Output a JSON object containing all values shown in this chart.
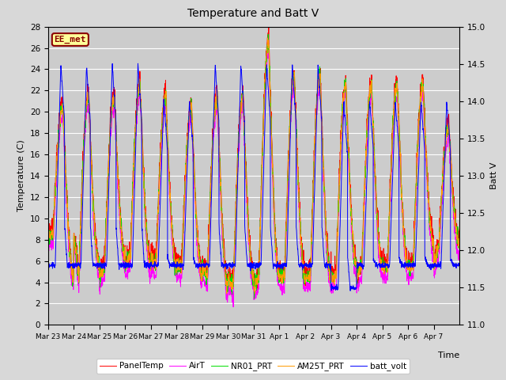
{
  "title": "Temperature and Batt V",
  "xlabel": "Time",
  "ylabel_left": "Temperature (C)",
  "ylabel_right": "Batt V",
  "ylim_left": [
    0,
    28
  ],
  "ylim_right": [
    11.0,
    15.0
  ],
  "yticks_left": [
    0,
    2,
    4,
    6,
    8,
    10,
    12,
    14,
    16,
    18,
    20,
    22,
    24,
    26,
    28
  ],
  "yticks_right": [
    11.0,
    11.5,
    12.0,
    12.5,
    13.0,
    13.5,
    14.0,
    14.5,
    15.0
  ],
  "xtick_labels": [
    "Mar 23",
    "Mar 24",
    "Mar 25",
    "Mar 26",
    "Mar 27",
    "Mar 28",
    "Mar 29",
    "Mar 30",
    "Mar 31",
    "Apr 1",
    "Apr 2",
    "Apr 3",
    "Apr 4",
    "Apr 5",
    "Apr 6",
    "Apr 7"
  ],
  "panel_color": "#ff0000",
  "air_color": "#ff00ff",
  "nr01_color": "#00dd00",
  "am25_color": "#ff9900",
  "batt_color": "#0000ff",
  "fig_bg_color": "#d8d8d8",
  "plot_bg_color": "#cccccc",
  "watermark_text": "EE_met",
  "watermark_fg": "#8b0000",
  "watermark_bg": "#ffff99",
  "legend_entries": [
    "PanelTemp",
    "AirT",
    "NR01_PRT",
    "AM25T_PRT",
    "batt_volt"
  ]
}
